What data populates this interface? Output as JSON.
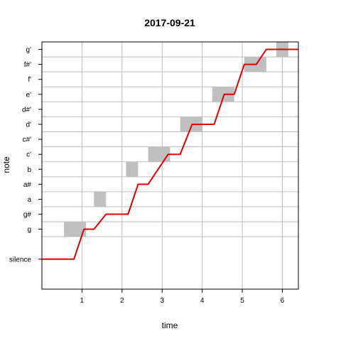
{
  "chart_data": {
    "type": "line",
    "title": "2017-09-21",
    "xlabel": "time",
    "ylabel": "note",
    "xlim": [
      0,
      6.4
    ],
    "x_ticks": [
      1,
      2,
      3,
      4,
      5,
      6
    ],
    "y_levels": [
      {
        "label": "silence",
        "value": -2
      },
      {
        "label": "g",
        "value": 0
      },
      {
        "label": "g#",
        "value": 1
      },
      {
        "label": "a",
        "value": 2
      },
      {
        "label": "a#",
        "value": 3
      },
      {
        "label": "b",
        "value": 4
      },
      {
        "label": "c'",
        "value": 5
      },
      {
        "label": "c#'",
        "value": 6
      },
      {
        "label": "d'",
        "value": 7
      },
      {
        "label": "d#'",
        "value": 8
      },
      {
        "label": "e'",
        "value": 9
      },
      {
        "label": "f'",
        "value": 10
      },
      {
        "label": "f#'",
        "value": 11
      },
      {
        "label": "g'",
        "value": 12
      }
    ],
    "ylim": [
      -4,
      12.5
    ],
    "grid": true,
    "target_notes": [
      {
        "start": 0.55,
        "end": 1.1,
        "note": 0
      },
      {
        "start": 1.3,
        "end": 1.6,
        "note": 2
      },
      {
        "start": 2.1,
        "end": 2.4,
        "note": 4
      },
      {
        "start": 2.65,
        "end": 3.2,
        "note": 5
      },
      {
        "start": 3.45,
        "end": 4.0,
        "note": 7
      },
      {
        "start": 4.25,
        "end": 4.8,
        "note": 9
      },
      {
        "start": 5.05,
        "end": 5.6,
        "note": 11
      },
      {
        "start": 5.85,
        "end": 6.15,
        "note": 12
      }
    ],
    "series": [
      {
        "color": "#e00000",
        "points": [
          [
            0,
            -2
          ],
          [
            0.8,
            -2
          ],
          [
            1.05,
            0
          ],
          [
            1.3,
            0
          ],
          [
            1.6,
            1
          ],
          [
            2.15,
            1
          ],
          [
            2.4,
            3
          ],
          [
            2.65,
            3
          ],
          [
            3.15,
            5
          ],
          [
            3.45,
            5
          ],
          [
            3.75,
            7
          ],
          [
            4.3,
            7
          ],
          [
            4.55,
            9
          ],
          [
            4.8,
            9
          ],
          [
            5.05,
            11
          ],
          [
            5.35,
            11
          ],
          [
            5.6,
            12
          ],
          [
            6.4,
            12
          ]
        ]
      }
    ],
    "colors": {
      "target_fill": "#c0c0c0",
      "grid": "#bebebe",
      "frame": "#000000"
    }
  }
}
